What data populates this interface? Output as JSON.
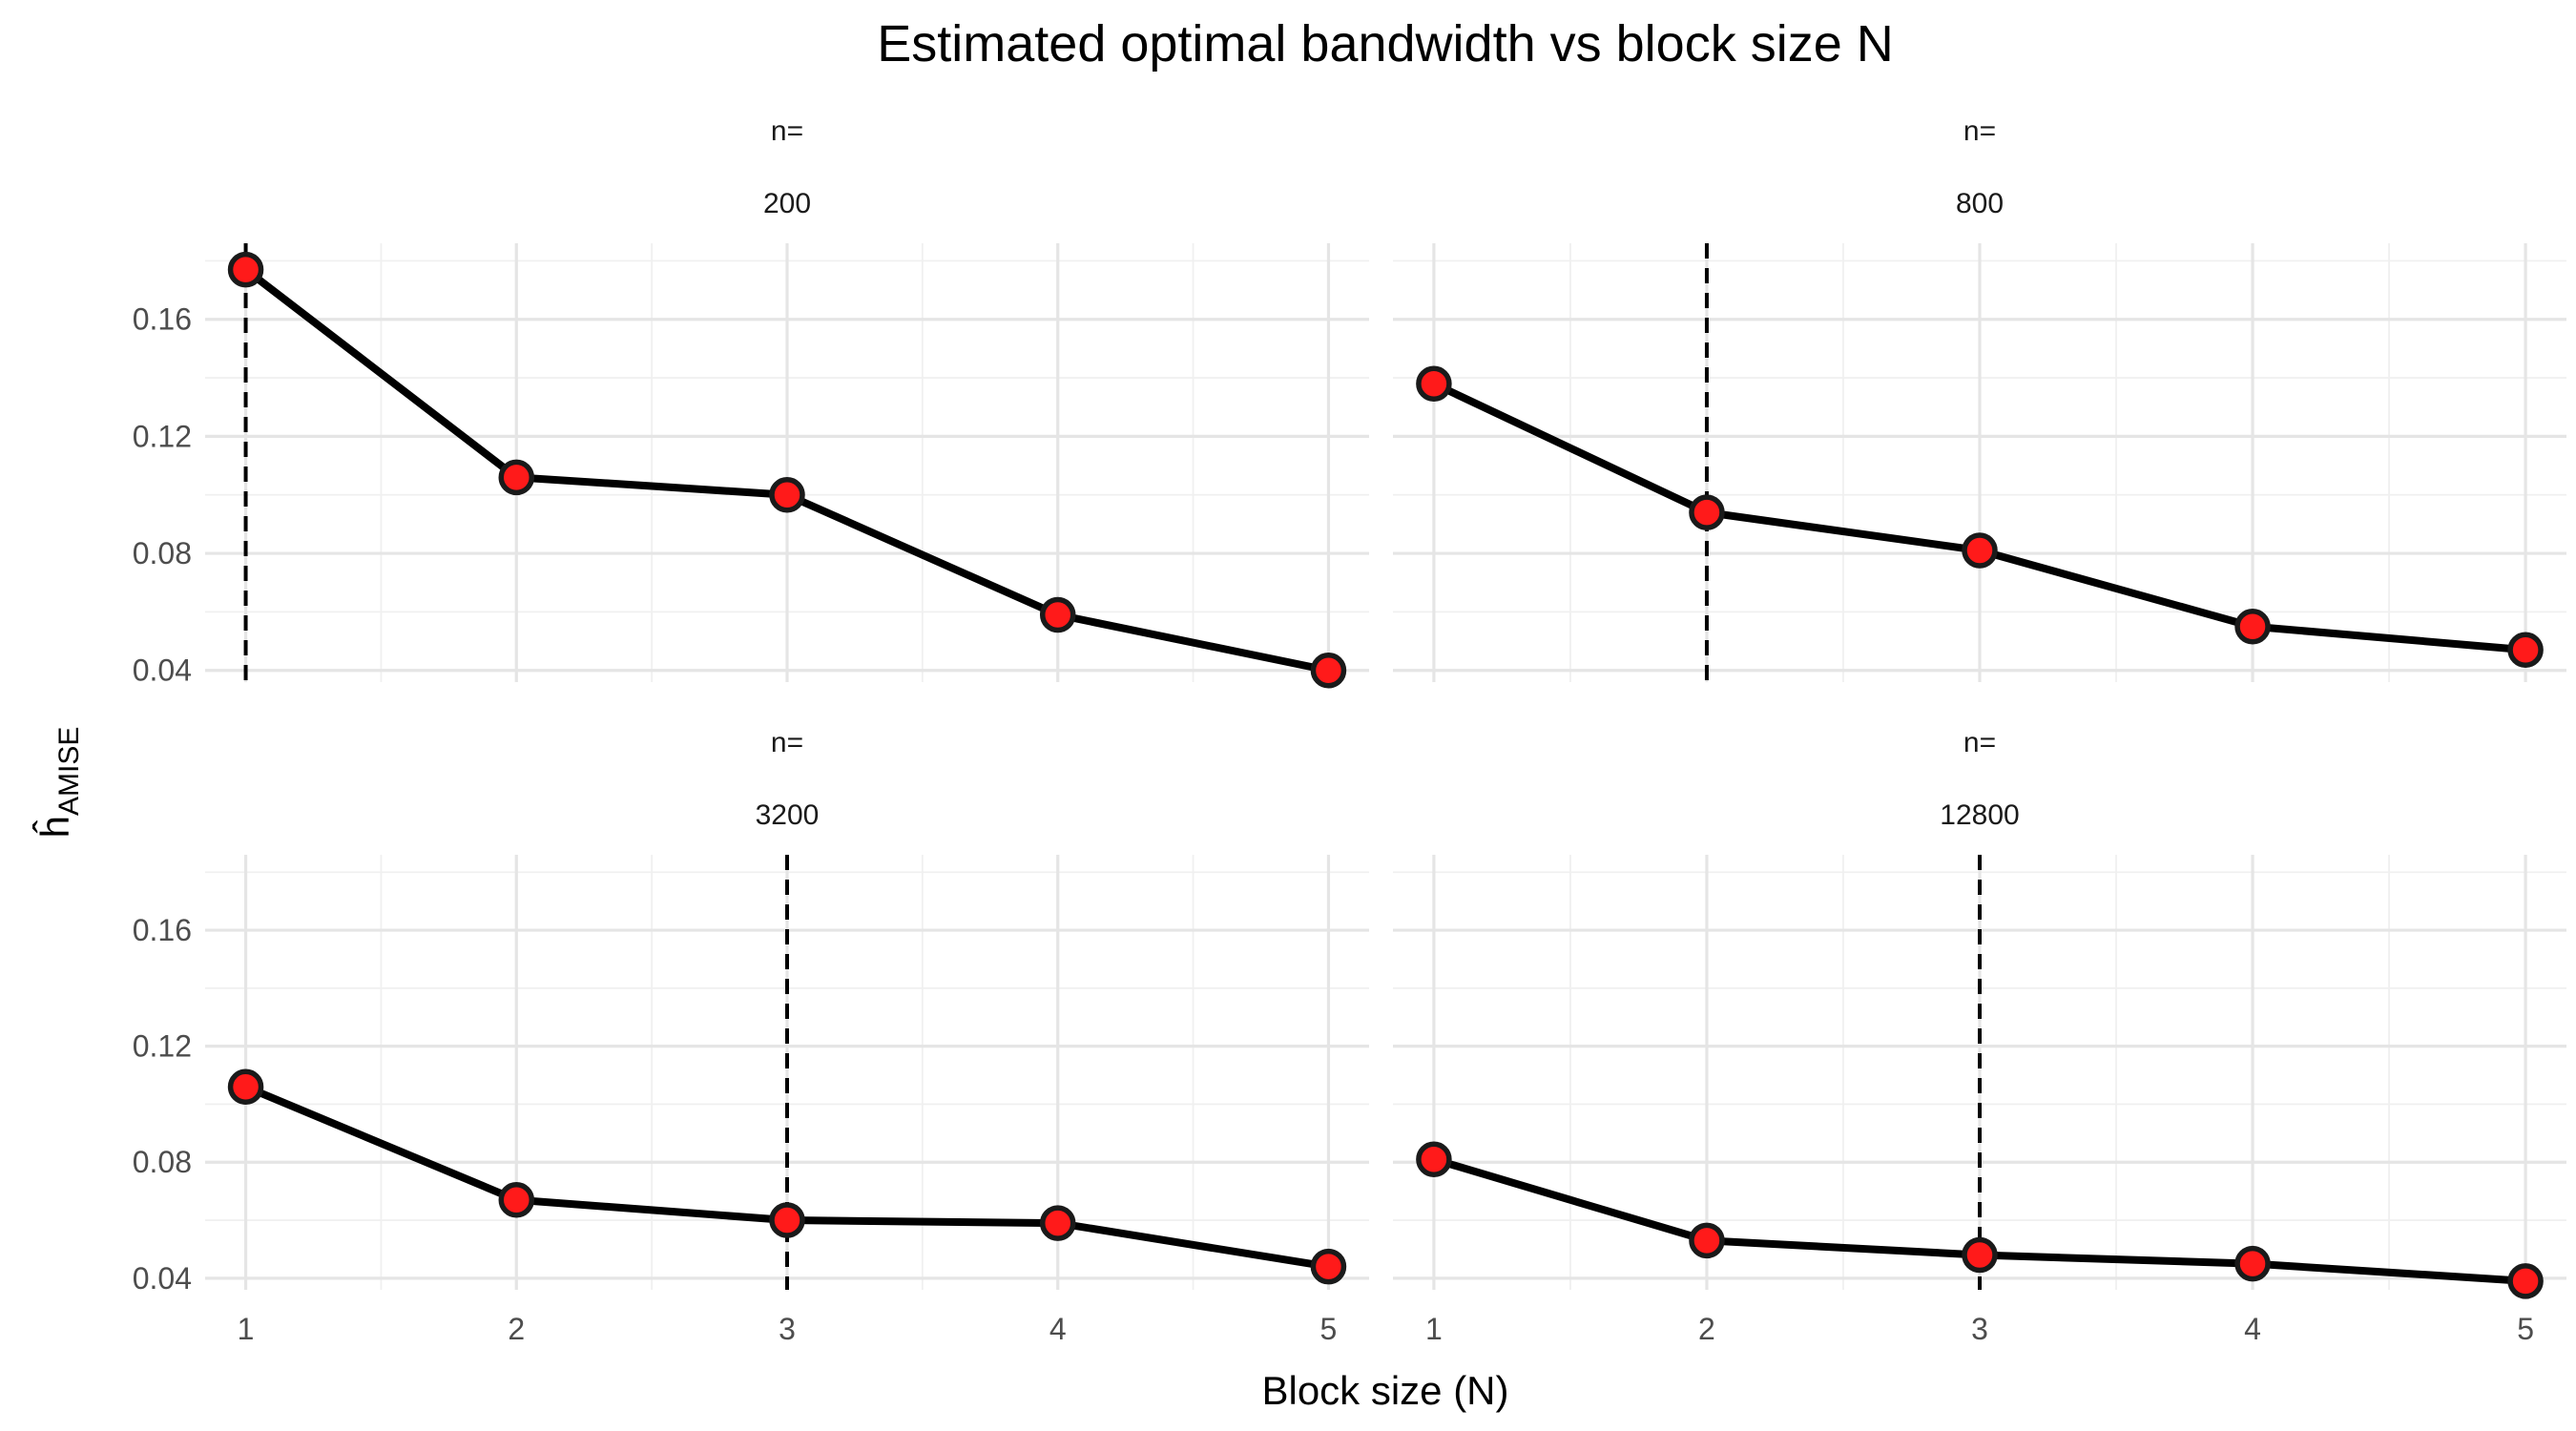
{
  "chart_data": {
    "type": "line",
    "title": "Estimated optimal bandwidth vs block size N",
    "xlabel": "Block size (N)",
    "ylabel": "ĥ",
    "ylabel_subscript": "AMISE",
    "x_ticks": [
      1,
      2,
      3,
      4,
      5
    ],
    "xlim": [
      0.85,
      5.15
    ],
    "y_ticks": [
      0.04,
      0.08,
      0.12,
      0.16
    ],
    "y_tick_labels": [
      "0.04",
      "0.08",
      "0.12",
      "0.16"
    ],
    "ylim": [
      0.036,
      0.186
    ],
    "grid": true,
    "layout": "facet 2x2",
    "colors": {
      "point_fill": "#ff1a1a",
      "point_stroke": "#1a1a1a",
      "line": "#000000",
      "grid": "#e5e5e5"
    },
    "facets": [
      {
        "strip_line1": "n=",
        "strip_line2": "200",
        "x": [
          1,
          2,
          3,
          4,
          5
        ],
        "y": [
          0.177,
          0.106,
          0.1,
          0.059,
          0.04
        ],
        "selected_N": 1
      },
      {
        "strip_line1": "n=",
        "strip_line2": "800",
        "x": [
          1,
          2,
          3,
          4,
          5
        ],
        "y": [
          0.138,
          0.094,
          0.081,
          0.055,
          0.047
        ],
        "selected_N": 2
      },
      {
        "strip_line1": "n=",
        "strip_line2": "3200",
        "x": [
          1,
          2,
          3,
          4,
          5
        ],
        "y": [
          0.106,
          0.067,
          0.06,
          0.059,
          0.044
        ],
        "selected_N": 3
      },
      {
        "strip_line1": "n=",
        "strip_line2": "12800",
        "x": [
          1,
          2,
          3,
          4,
          5
        ],
        "y": [
          0.081,
          0.053,
          0.048,
          0.045,
          0.039
        ],
        "selected_N": 3
      }
    ]
  }
}
